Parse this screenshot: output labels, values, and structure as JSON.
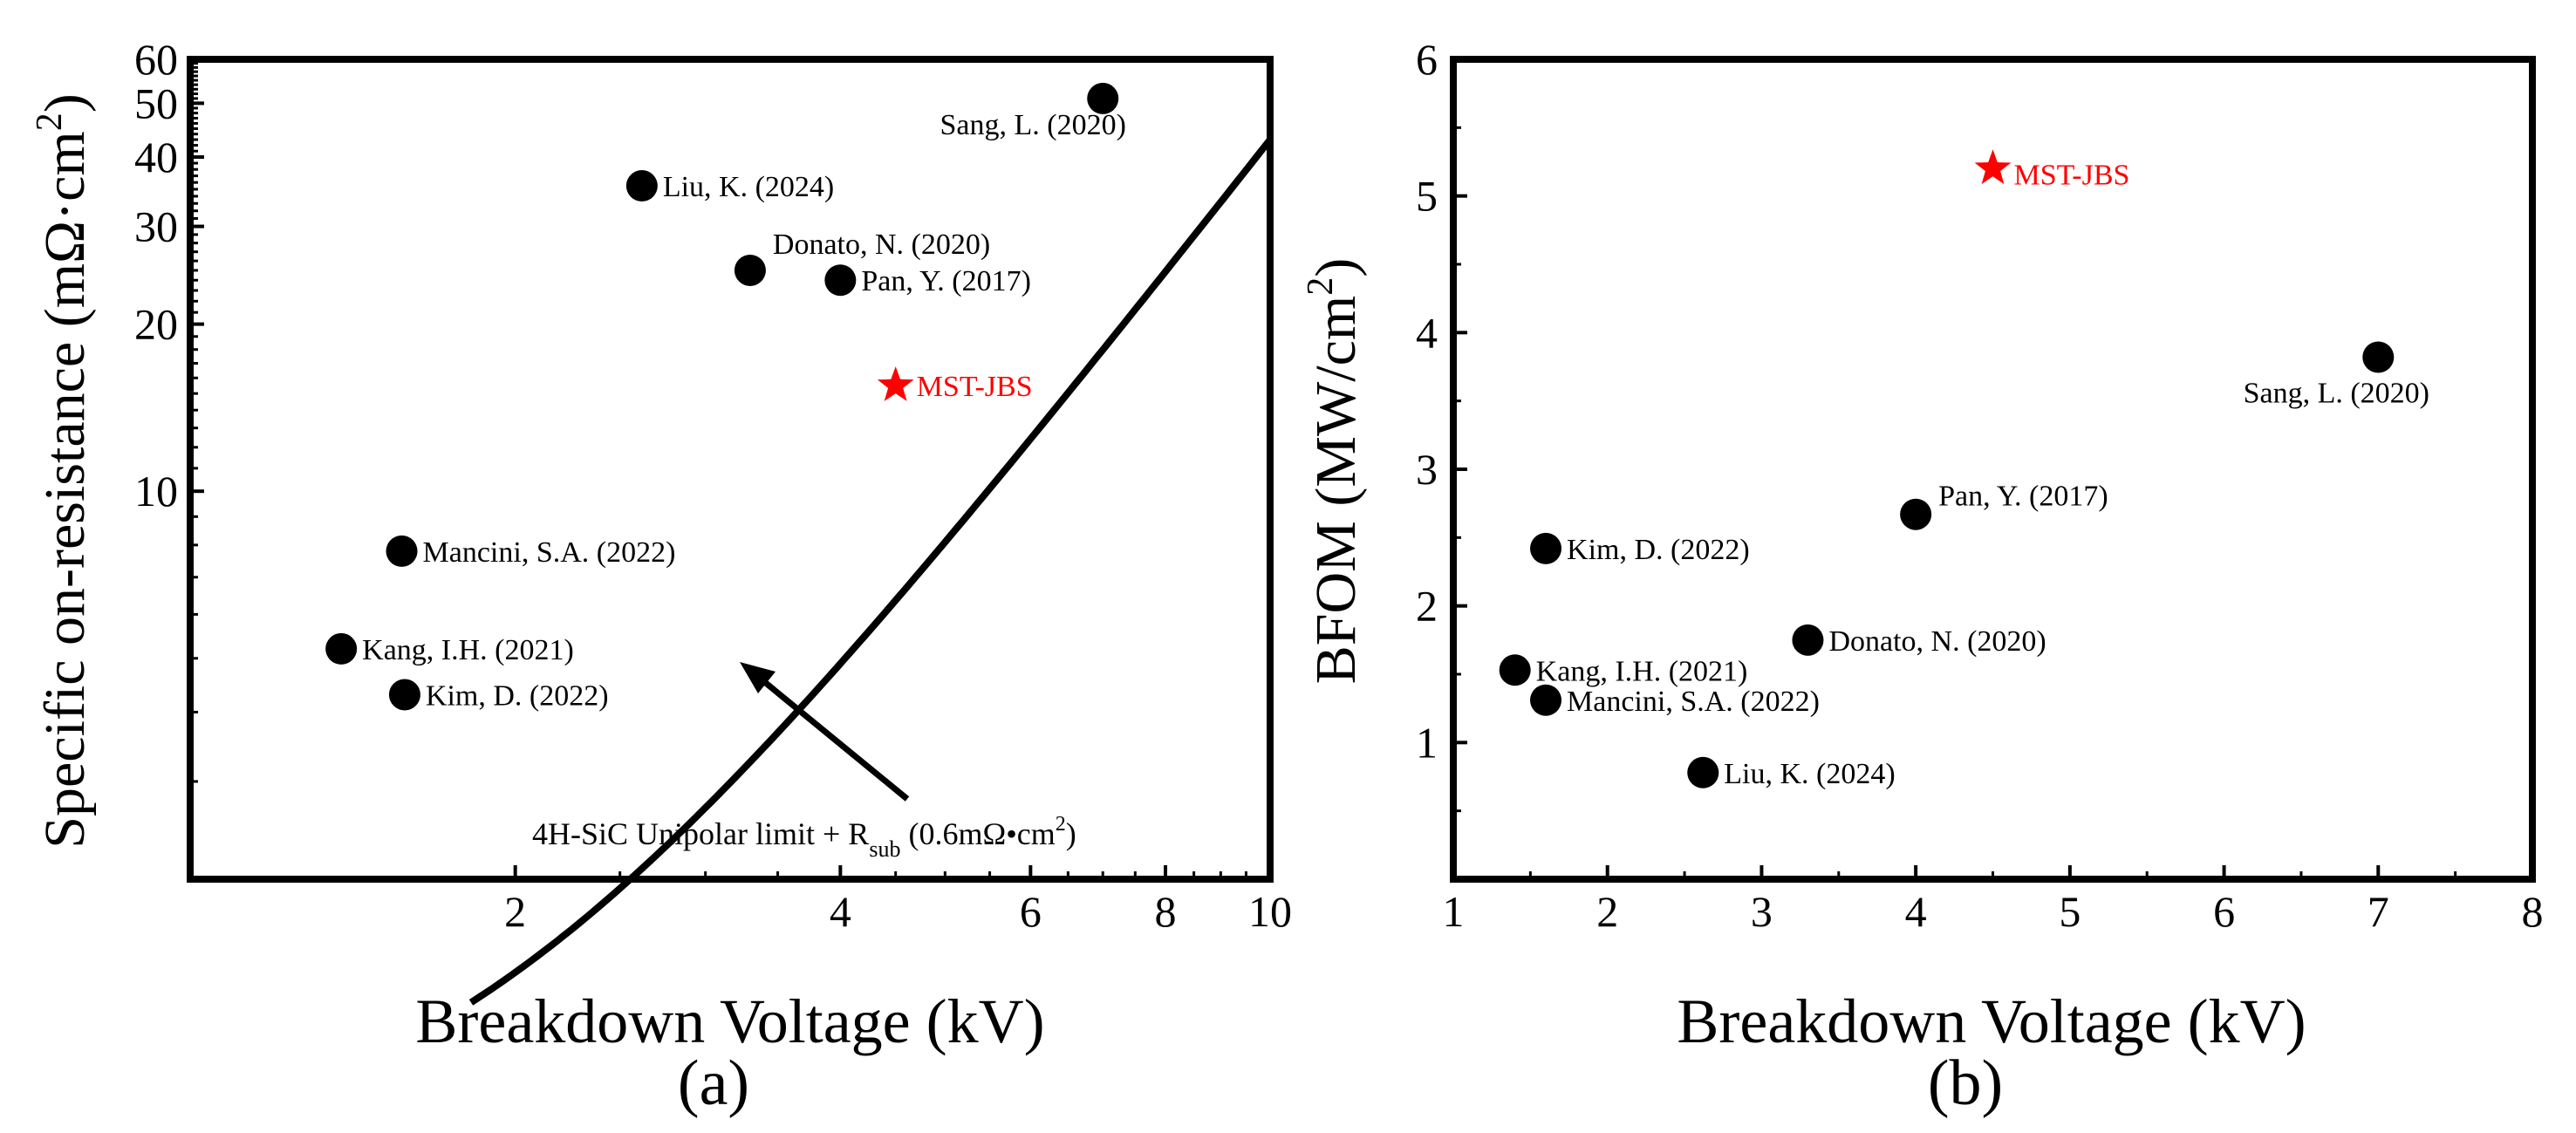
{
  "colors": {
    "series": "#000000",
    "highlight": "#ff0000"
  },
  "chart_data": [
    {
      "type": "scatter",
      "panel": "(a)",
      "xlabel": "Breakdown Voltage (kV)",
      "ylabel_main": "Specific on-resistance (mΩ·cm",
      "ylabel_sup": "2",
      "ylabel_close": ")",
      "xscale": "log",
      "yscale": "log",
      "xlim": [
        1,
        10
      ],
      "ylim": [
        2,
        60
      ],
      "xticks": [
        2,
        4,
        6,
        8,
        10
      ],
      "xtick_labels": [
        "2",
        "4",
        "6",
        "8",
        "10"
      ],
      "yticks": [
        10,
        20,
        30,
        40,
        50,
        60
      ],
      "ytick_labels": [
        "10",
        "20",
        "30",
        "40",
        "50",
        "60"
      ],
      "points": [
        {
          "label": "Sang, L. (2020)",
          "x": 7.0,
          "y": 51.0
        },
        {
          "label": "Liu, K. (2024)",
          "x": 2.62,
          "y": 35.5
        },
        {
          "label": "Donato, N. (2020)",
          "x": 3.3,
          "y": 25.0
        },
        {
          "label": "Pan, Y. (2017)",
          "x": 4.0,
          "y": 24.0
        },
        {
          "label": "Mancini, S.A. (2022)",
          "x": 1.57,
          "y": 7.8
        },
        {
          "label": "Kang, I.H. (2021)",
          "x": 1.38,
          "y": 5.2
        },
        {
          "label": "Kim, D. (2022)",
          "x": 1.58,
          "y": 4.3
        }
      ],
      "highlight": {
        "label": "MST-JBS",
        "x": 4.5,
        "y": 15.5
      },
      "limit_curve": {
        "description_parts": [
          "4H-SiC Unipolar limit + R",
          "sub",
          " (0.6mΩ•cm",
          "2",
          ")"
        ],
        "r_sub": 0.6,
        "anchor_bv_kv": 10,
        "anchor_ron": 43,
        "exponent": 2.5,
        "x_start": 1.82,
        "x_end": 10
      }
    },
    {
      "type": "scatter",
      "panel": "(b)",
      "xlabel": "Breakdown Voltage (kV)",
      "ylabel_main": "BFOM (MW/cm",
      "ylabel_sup": "2",
      "ylabel_close": ")",
      "xlim": [
        1,
        8
      ],
      "ylim": [
        0,
        6
      ],
      "xticks": [
        1,
        2,
        3,
        4,
        5,
        6,
        7,
        8
      ],
      "xtick_labels": [
        "1",
        "2",
        "3",
        "4",
        "5",
        "6",
        "7",
        "8"
      ],
      "yticks": [
        1,
        2,
        3,
        4,
        5,
        6
      ],
      "ytick_labels": [
        "1",
        "2",
        "3",
        "4",
        "5",
        "6"
      ],
      "points": [
        {
          "label": "Sang, L. (2020)",
          "x": 7.0,
          "y": 3.82
        },
        {
          "label": "Pan, Y. (2017)",
          "x": 4.0,
          "y": 2.67
        },
        {
          "label": "Kim, D. (2022)",
          "x": 1.6,
          "y": 2.42
        },
        {
          "label": "Donato, N. (2020)",
          "x": 3.3,
          "y": 1.75
        },
        {
          "label": "Kang, I.H. (2021)",
          "x": 1.4,
          "y": 1.53
        },
        {
          "label": "Mancini, S.A. (2022)",
          "x": 1.6,
          "y": 1.31
        },
        {
          "label": "Liu, K. (2024)",
          "x": 2.62,
          "y": 0.78
        }
      ],
      "highlight": {
        "label": "MST-JBS",
        "x": 4.5,
        "y": 5.2
      }
    }
  ]
}
